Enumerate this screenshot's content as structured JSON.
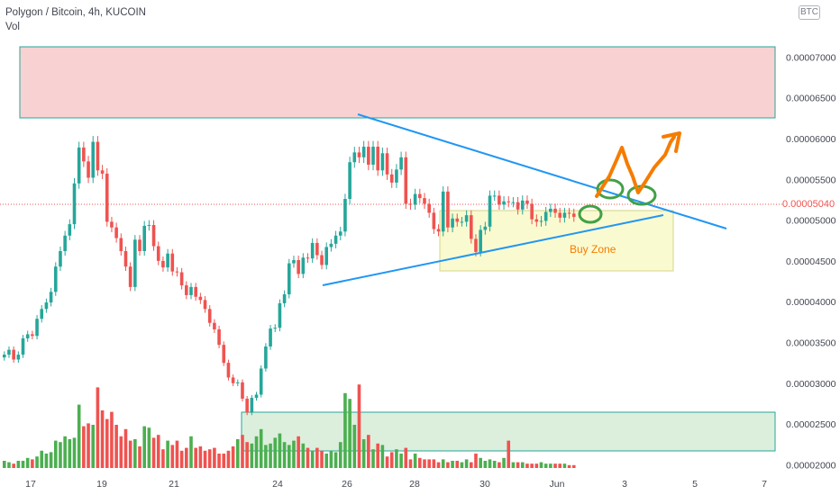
{
  "header": {
    "title": "Polygon / Bitcoin, 4h, KUCOIN",
    "volume_label": "Vol",
    "currency_badge": "BTC"
  },
  "current_price_label": "0.00005040",
  "annotation_text": "Buy Zone",
  "colors": {
    "up": "#26a69a",
    "down": "#ef5350",
    "vol_up": "#4caf50",
    "vol_down": "#ef5350",
    "trendline": "#2196f3",
    "marker_circle": "#43a047",
    "arrow": "#f57c00"
  },
  "chart_data": {
    "type": "candlestick",
    "title": "Polygon / Bitcoin, 4h, KUCOIN",
    "x_tick_labels": [
      "17",
      "19",
      "21",
      "24",
      "26",
      "28",
      "30",
      "Jun",
      "3",
      "5",
      "7"
    ],
    "y_tick_labels": [
      "0.00002000",
      "0.00002500",
      "0.00003000",
      "0.00003500",
      "0.00004000",
      "0.00004500",
      "0.00005000",
      "0.00005500",
      "0.00006000",
      "0.00006500",
      "0.00007000"
    ],
    "ylim": [
      1.96e-05,
      7.28e-05
    ],
    "current_price": 5.04e-05,
    "close": [
      3.35e-05,
      3.41e-05,
      3.29e-05,
      3.35e-05,
      3.55e-05,
      3.6e-05,
      3.58e-05,
      3.79e-05,
      3.91e-05,
      3.99e-05,
      4.12e-05,
      4.43e-05,
      4.62e-05,
      4.81e-05,
      4.95e-05,
      5.45e-05,
      5.89e-05,
      5.72e-05,
      5.52e-05,
      5.96e-05,
      5.61e-05,
      5.57e-05,
      4.98e-05,
      4.91e-05,
      4.78e-05,
      4.62e-05,
      4.43e-05,
      4.18e-05,
      4.76e-05,
      4.62e-05,
      4.93e-05,
      4.94e-05,
      4.68e-05,
      4.5e-05,
      4.42e-05,
      4.59e-05,
      4.37e-05,
      4.36e-05,
      4.2e-05,
      4.08e-05,
      4.18e-05,
      4.06e-05,
      4.02e-05,
      3.91e-05,
      3.74e-05,
      3.66e-05,
      3.47e-05,
      3.25e-05,
      3.07e-05,
      3e-05,
      3.01e-05,
      2.81e-05,
      2.64e-05,
      2.82e-05,
      2.86e-05,
      3.18e-05,
      3.45e-05,
      3.67e-05,
      3.68e-05,
      3.98e-05,
      4.09e-05,
      4.47e-05,
      4.51e-05,
      4.34e-05,
      4.54e-05,
      4.53e-05,
      4.72e-05,
      4.57e-05,
      4.45e-05,
      4.67e-05,
      4.71e-05,
      4.81e-05,
      4.86e-05,
      5.26e-05,
      5.71e-05,
      5.83e-05,
      5.77e-05,
      5.9e-05,
      5.68e-05,
      5.9e-05,
      5.61e-05,
      5.82e-05,
      5.56e-05,
      5.46e-05,
      5.62e-05,
      5.77e-05,
      5.2e-05,
      5.19e-05,
      5.32e-05,
      5.27e-05,
      5.2e-05,
      5.09e-05,
      4.89e-05,
      4.86e-05,
      5.35e-05,
      4.91e-05,
      5.02e-05,
      4.98e-05,
      4.98e-05,
      5.06e-05,
      4.77e-05,
      4.61e-05,
      4.88e-05,
      4.92e-05,
      5.3e-05,
      5.3e-05,
      5.19e-05,
      5.23e-05,
      5.22e-05,
      5.22e-05,
      5.13e-05,
      5.24e-05,
      5.2e-05,
      5.01e-05,
      4.98e-05,
      4.99e-05,
      5.1e-05,
      5.14e-05,
      5.09e-05,
      5.03e-05,
      5.09e-05,
      5.08e-05,
      5.04e-05
    ],
    "volume_pixel_note": "volume bars plotted in relative units",
    "volume": [
      5,
      4,
      3,
      5,
      5,
      7,
      6,
      8,
      12,
      10,
      11,
      19,
      18,
      22,
      20,
      21,
      44,
      29,
      31,
      30,
      56,
      40,
      34,
      39,
      30,
      22,
      27,
      19,
      20,
      15,
      29,
      28,
      21,
      23,
      13,
      19,
      16,
      19,
      12,
      14,
      22,
      14,
      15,
      12,
      13,
      14,
      10,
      10,
      12,
      15,
      20,
      23,
      18,
      17,
      22,
      27,
      16,
      17,
      21,
      24,
      18,
      16,
      19,
      22,
      17,
      14,
      12,
      14,
      12,
      10,
      12,
      11,
      18,
      52,
      48,
      30,
      58,
      20,
      23,
      13,
      17,
      16,
      8,
      11,
      13,
      10,
      14,
      6,
      10,
      7,
      6,
      6,
      6,
      4,
      6,
      4,
      5,
      5,
      4,
      6,
      4,
      10,
      7,
      5,
      6,
      5,
      4,
      7,
      19,
      4,
      4,
      4,
      3,
      3,
      3,
      4,
      3,
      3,
      3,
      3,
      3,
      2,
      2
    ]
  }
}
